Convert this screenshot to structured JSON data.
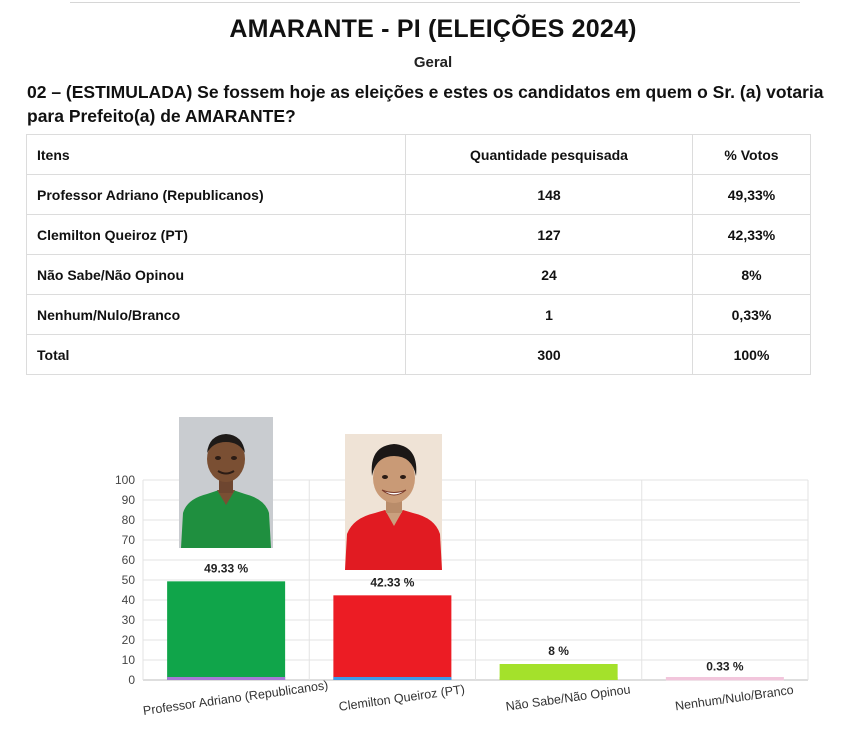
{
  "header": {
    "title": "AMARANTE - PI (ELEIÇÕES 2024)",
    "subtitle": "Geral",
    "question": "02 – (ESTIMULADA) Se fossem hoje as eleições e estes os candidatos em quem o Sr. (a) votaria para Prefeito(a) de AMARANTE?"
  },
  "table": {
    "headers": [
      "Itens",
      "Quantidade pesquisada",
      "% Votos"
    ],
    "rows": [
      [
        "Professor Adriano (Republicanos)",
        "148",
        "49,33%"
      ],
      [
        "Clemilton Queiroz (PT)",
        "127",
        "42,33%"
      ],
      [
        "Não Sabe/Não Opinou",
        "24",
        "8%"
      ],
      [
        "Nenhum/Nulo/Branco",
        "1",
        "0,33%"
      ],
      [
        "Total",
        "300",
        "100%"
      ]
    ]
  },
  "chart_data": {
    "type": "bar",
    "categories": [
      "Professor Adriano (Republicanos)",
      "Clemilton Queiroz (PT)",
      "Não Sabe/Não Opinou",
      "Nenhum/Nulo/Branco"
    ],
    "values": [
      49.33,
      42.33,
      8,
      0.33
    ],
    "data_labels": [
      "49.33 %",
      "42.33 %",
      "8 %",
      "0.33 %"
    ],
    "colors": [
      "#10a54a",
      "#ec1c24",
      "#a4e12b",
      "#f2c6dc"
    ],
    "base_colors": [
      "#a779d6",
      "#3d9be9",
      "#a4e12b",
      "#f2c6dc"
    ],
    "ylim": [
      0,
      100
    ],
    "yticks": [
      0,
      10,
      20,
      30,
      40,
      50,
      60,
      70,
      80,
      90,
      100
    ],
    "grid": true,
    "xlabel": "",
    "ylabel": ""
  },
  "photos": [
    {
      "icon": "candidate-photo-professor-adriano",
      "shirt": "#1f8f3f"
    },
    {
      "icon": "candidate-photo-clemilton-queiroz",
      "shirt": "#e11b22"
    }
  ]
}
